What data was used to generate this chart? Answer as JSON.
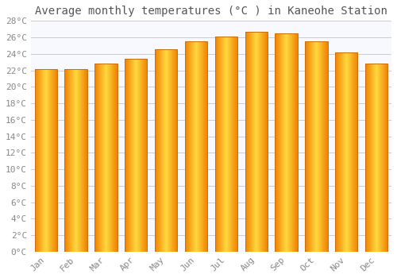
{
  "title": "Average monthly temperatures (°C ) in Kaneohe Station",
  "months": [
    "Jan",
    "Feb",
    "Mar",
    "Apr",
    "May",
    "Jun",
    "Jul",
    "Aug",
    "Sep",
    "Oct",
    "Nov",
    "Dec"
  ],
  "values": [
    22.1,
    22.1,
    22.8,
    23.4,
    24.6,
    25.5,
    26.1,
    26.7,
    26.5,
    25.5,
    24.2,
    22.8
  ],
  "bar_color_center": "#FFD040",
  "bar_color_edge": "#F08000",
  "bar_edge_color": "#C87010",
  "background_color": "#FFFFFF",
  "plot_bg_color": "#F8F8FF",
  "grid_color": "#CCCCCC",
  "ylim": [
    0,
    28
  ],
  "yticks": [
    0,
    2,
    4,
    6,
    8,
    10,
    12,
    14,
    16,
    18,
    20,
    22,
    24,
    26,
    28
  ],
  "ytick_labels": [
    "0°C",
    "2°C",
    "4°C",
    "6°C",
    "8°C",
    "10°C",
    "12°C",
    "14°C",
    "16°C",
    "18°C",
    "20°C",
    "22°C",
    "24°C",
    "26°C",
    "28°C"
  ],
  "title_fontsize": 10,
  "tick_fontsize": 8,
  "font_family": "monospace",
  "tick_color": "#888888",
  "title_color": "#555555"
}
